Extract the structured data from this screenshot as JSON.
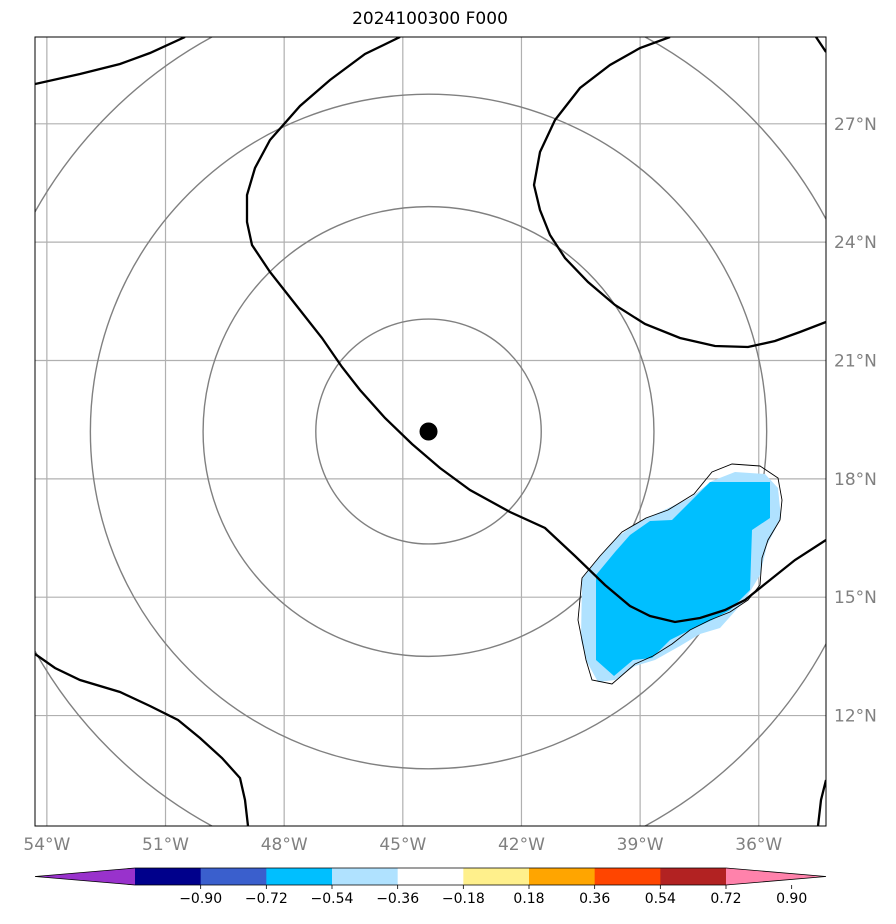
{
  "title": "2024100300 F000",
  "map": {
    "lon_range": [
      -54.3,
      -34.3
    ],
    "lat_range": [
      9.2,
      29.2
    ],
    "lon_ticks": [
      {
        "value": -54,
        "label": "54°W"
      },
      {
        "value": -51,
        "label": "51°W"
      },
      {
        "value": -48,
        "label": "48°W"
      },
      {
        "value": -45,
        "label": "45°W"
      },
      {
        "value": -42,
        "label": "42°W"
      },
      {
        "value": -39,
        "label": "39°W"
      },
      {
        "value": -36,
        "label": "36°W"
      }
    ],
    "lat_ticks": [
      {
        "value": 12,
        "label": "12°N"
      },
      {
        "value": 15,
        "label": "15°N"
      },
      {
        "value": 18,
        "label": "18°N"
      },
      {
        "value": 21,
        "label": "21°N"
      },
      {
        "value": 24,
        "label": "24°N"
      },
      {
        "value": 27,
        "label": "27°N"
      }
    ],
    "center": {
      "lon": -44.35,
      "lat": 19.2
    },
    "range_ring_radii_deg": [
      2.85,
      5.7,
      8.55,
      11.4
    ],
    "colors": {
      "grid": "#b0b0b0",
      "rings": "#808080",
      "contour": "#000000",
      "tick_text": "#808080"
    }
  },
  "colorbar": {
    "colors": [
      "#9932cc",
      "#00008b",
      "#3a5fcd",
      "#00bfff",
      "#b0e2ff",
      "#ffffff",
      "#fff08c",
      "#ffa500",
      "#ff4500",
      "#b22222",
      "#ff82ab"
    ],
    "labels": [
      "−0.90",
      "−0.72",
      "−0.54",
      "−0.36",
      "−0.18",
      "0.18",
      "0.36",
      "0.54",
      "0.72",
      "0.90"
    ]
  }
}
